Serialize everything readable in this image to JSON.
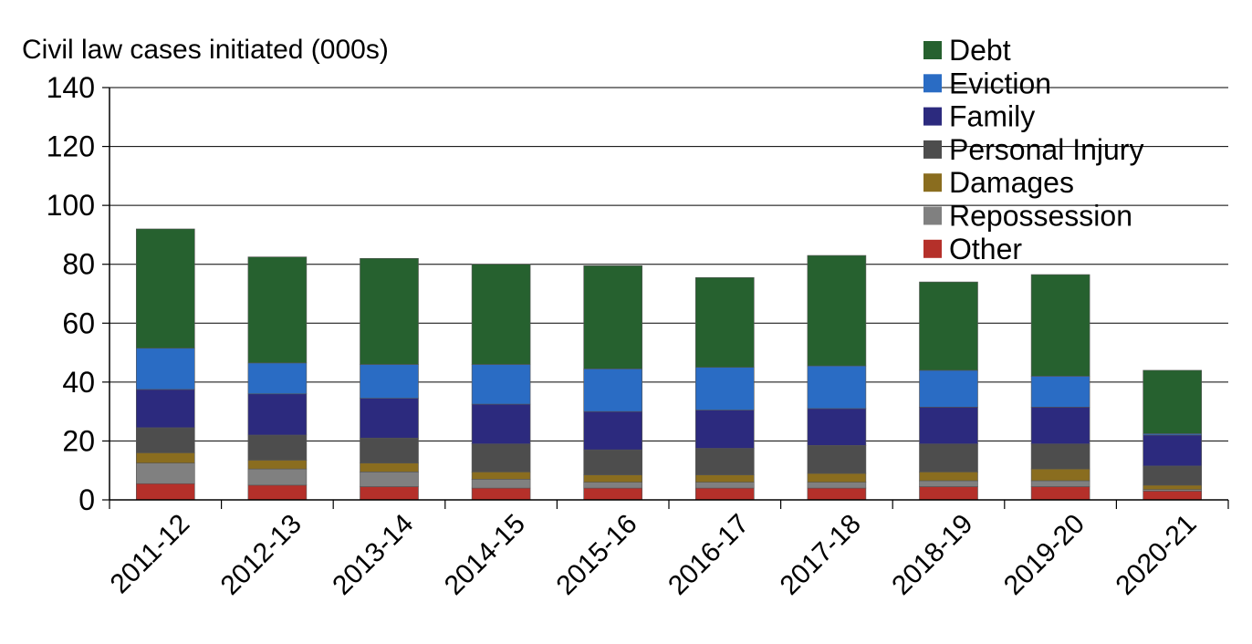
{
  "chart_data": {
    "type": "bar",
    "stacked": true,
    "title": "",
    "ylabel": "Civil law cases initiated (000s)",
    "xlabel": "",
    "ylim": [
      0,
      140
    ],
    "yticks": [
      0,
      20,
      40,
      60,
      80,
      100,
      120,
      140
    ],
    "grid": true,
    "legend_position": "top-right",
    "categories": [
      "2011-12",
      "2012-13",
      "2013-14",
      "2014-15",
      "2015-16",
      "2016-17",
      "2017-18",
      "2018-19",
      "2019-20",
      "2020-21"
    ],
    "series": [
      {
        "name": "Other",
        "color": "#b5302a",
        "values": [
          5.5,
          5.0,
          4.5,
          4.0,
          4.0,
          4.0,
          4.0,
          4.5,
          4.5,
          3.0
        ]
      },
      {
        "name": "Repossession",
        "color": "#808080",
        "values": [
          7.0,
          5.5,
          5.0,
          3.0,
          2.0,
          2.0,
          2.0,
          2.0,
          2.0,
          0.5
        ]
      },
      {
        "name": "Damages",
        "color": "#8a6d1f",
        "values": [
          3.5,
          3.0,
          3.0,
          2.5,
          2.5,
          2.5,
          3.0,
          3.0,
          4.0,
          1.5
        ]
      },
      {
        "name": "Personal Injury",
        "color": "#4d4d4d",
        "values": [
          8.5,
          8.5,
          8.5,
          9.5,
          8.5,
          9.0,
          9.5,
          9.5,
          8.5,
          6.5
        ]
      },
      {
        "name": "Family",
        "color": "#2c2a7e",
        "values": [
          13.0,
          14.0,
          13.5,
          13.5,
          13.0,
          13.0,
          12.5,
          12.5,
          12.5,
          10.5
        ]
      },
      {
        "name": "Eviction",
        "color": "#2a6cc4",
        "values": [
          14.0,
          10.5,
          11.5,
          13.5,
          14.5,
          14.5,
          14.5,
          12.5,
          10.5,
          0.5
        ]
      },
      {
        "name": "Debt",
        "color": "#26612f",
        "values": [
          40.5,
          36.0,
          36.0,
          34.0,
          35.0,
          30.5,
          37.5,
          30.0,
          34.5,
          21.5
        ]
      }
    ],
    "legend_order": [
      "Debt",
      "Eviction",
      "Family",
      "Personal Injury",
      "Damages",
      "Repossession",
      "Other"
    ]
  }
}
